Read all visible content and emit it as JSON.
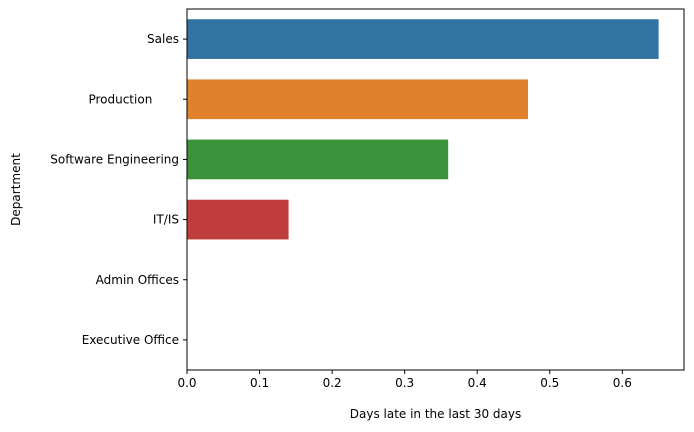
{
  "chart_data": {
    "type": "bar",
    "orientation": "horizontal",
    "categories": [
      "Sales",
      "Production       ",
      "Software Engineering",
      "IT/IS",
      "Admin Offices",
      "Executive Office"
    ],
    "values": [
      0.65,
      0.47,
      0.36,
      0.14,
      0.0,
      0.0
    ],
    "colors": [
      "#3274a1",
      "#e1812c",
      "#3a923a",
      "#c03d3e",
      "#9372b2",
      "#845b53"
    ],
    "xlabel": "Days late in the last 30 days",
    "ylabel": "Department",
    "xlim": [
      0,
      0.685
    ],
    "xticks": [
      0.0,
      0.1,
      0.2,
      0.3,
      0.4,
      0.5,
      0.6
    ],
    "xtick_labels": [
      "0.0",
      "0.1",
      "0.2",
      "0.3",
      "0.4",
      "0.5",
      "0.6"
    ],
    "grid": false,
    "legend": "none"
  }
}
